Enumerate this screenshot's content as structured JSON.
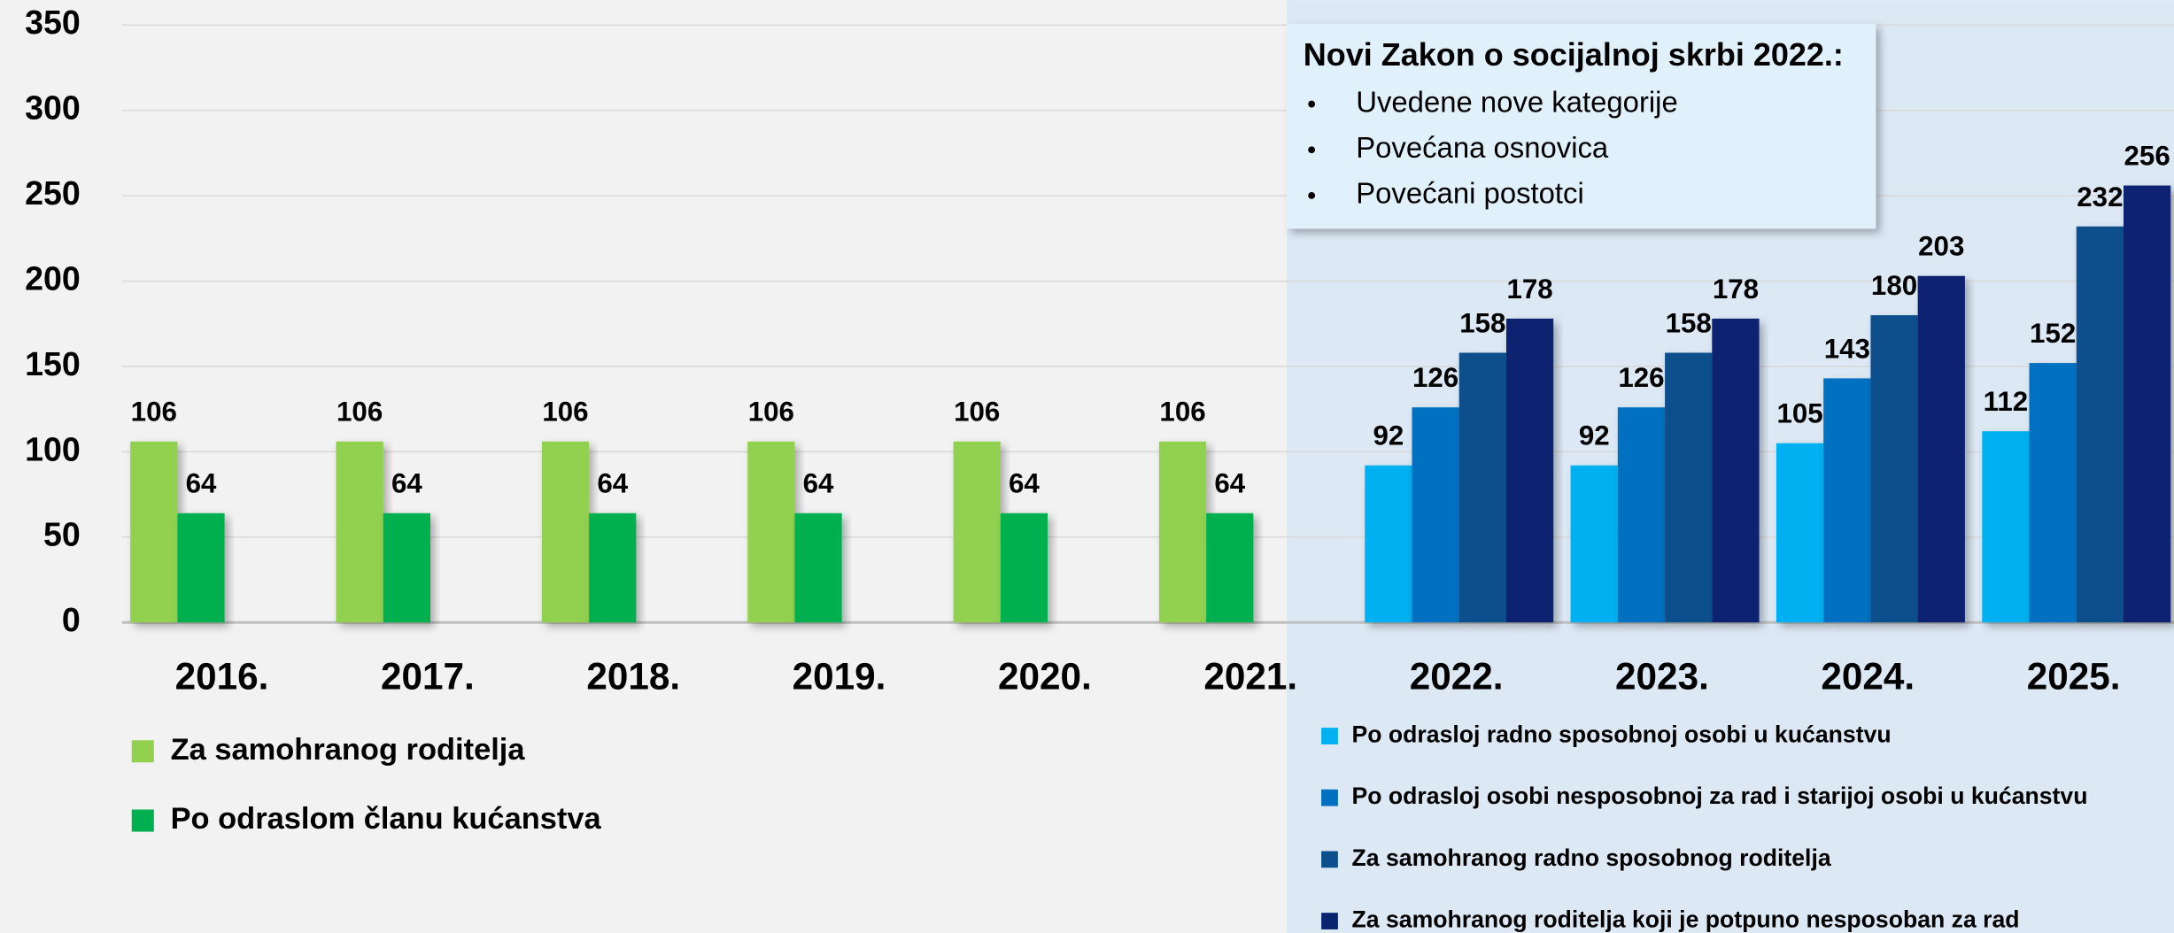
{
  "chart_data": {
    "type": "bar",
    "categories": [
      "2016.",
      "2017.",
      "2018.",
      "2019.",
      "2020.",
      "2021.",
      "2022.",
      "2023.",
      "2024.",
      "2025."
    ],
    "series": [
      {
        "name": "Za samohranog roditelja",
        "color": "#92d050",
        "values": [
          106,
          106,
          106,
          106,
          106,
          106,
          null,
          null,
          null,
          null
        ]
      },
      {
        "name": "Po odraslom članu kućanstva",
        "color": "#00b050",
        "values": [
          64,
          64,
          64,
          64,
          64,
          64,
          null,
          null,
          null,
          null
        ]
      },
      {
        "name": "Po odrasloj radno sposobnoj osobi u kućanstvu",
        "color": "#00b0f0",
        "values": [
          null,
          null,
          null,
          null,
          null,
          null,
          92,
          92,
          105,
          112
        ]
      },
      {
        "name": "Po odrasloj osobi nesposobnoj za rad i starijoj osobi u kućanstvu",
        "color": "#0070c0",
        "values": [
          null,
          null,
          null,
          null,
          null,
          null,
          126,
          126,
          143,
          152
        ]
      },
      {
        "name": "Za samohranog radno sposobnog roditelja",
        "color": "#0b4f8c",
        "values": [
          null,
          null,
          null,
          null,
          null,
          null,
          158,
          158,
          180,
          232
        ]
      },
      {
        "name": "Za samohranog roditelja koji je potpuno nesposoban za rad",
        "color": "#0a2470",
        "values": [
          null,
          null,
          null,
          null,
          null,
          null,
          178,
          178,
          203,
          256
        ]
      }
    ],
    "ylim": [
      0,
      350
    ],
    "yticks": [
      0,
      50,
      100,
      150,
      200,
      250,
      300,
      350
    ],
    "grid": true,
    "annotation": {
      "title": "Novi Zakon o socijalnoj skrbi 2022.:",
      "items": [
        "Uvedene nove kategorije",
        "Povećana osnovica",
        "Povećani postotci"
      ]
    }
  }
}
